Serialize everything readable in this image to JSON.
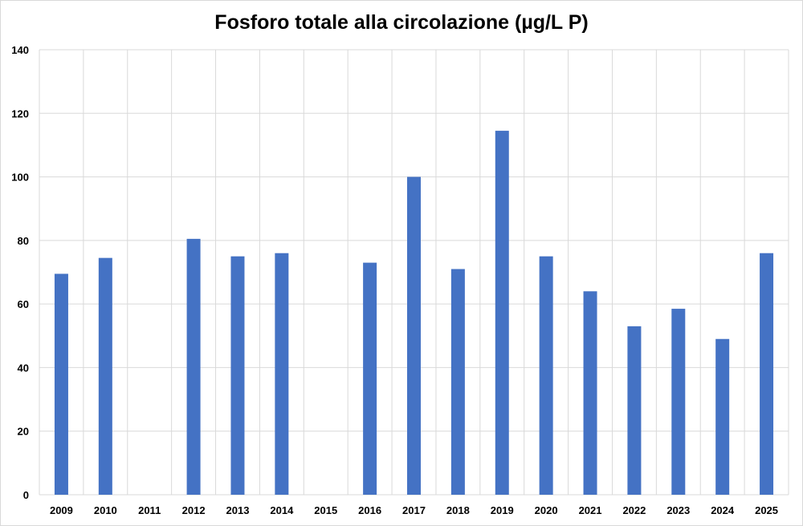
{
  "chart_data": {
    "type": "bar",
    "title": "Fosforo totale alla circolazione (µg/L P)",
    "xlabel": "",
    "ylabel": "",
    "ylim": [
      0,
      140
    ],
    "yticks": [
      0,
      20,
      40,
      60,
      80,
      100,
      120,
      140
    ],
    "grid": true,
    "legend": "none",
    "bar_color": "#4472C4",
    "categories": [
      "2009",
      "2010",
      "2011",
      "2012",
      "2013",
      "2014",
      "2015",
      "2016",
      "2017",
      "2018",
      "2019",
      "2020",
      "2021",
      "2022",
      "2023",
      "2024",
      "2025"
    ],
    "values": [
      69.5,
      74.5,
      null,
      80.5,
      75,
      76,
      null,
      73,
      100,
      71,
      114.5,
      75,
      64,
      53,
      58.5,
      49,
      76
    ]
  }
}
